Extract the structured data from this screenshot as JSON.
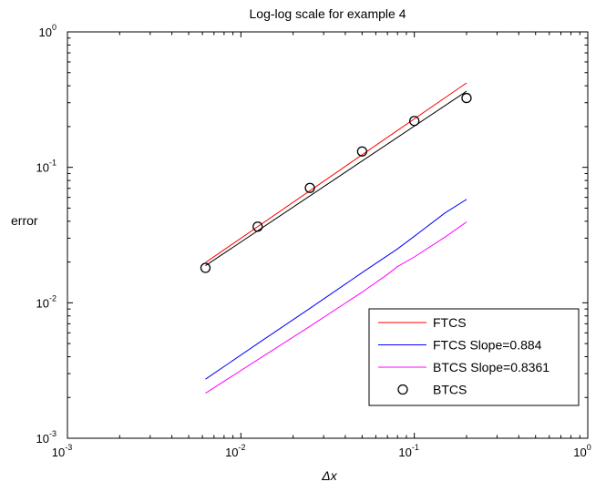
{
  "chart_data": {
    "type": "line",
    "title": "Log-log scale for example  4",
    "xlabel": "Δx",
    "ylabel": "error",
    "xscale": "log",
    "yscale": "log",
    "xlim": [
      0.001,
      1
    ],
    "ylim": [
      0.001,
      1
    ],
    "grid": false,
    "legend_position": "bottom-right",
    "x_ticks": [
      {
        "base": "10",
        "exp": "-3",
        "value": 0.001
      },
      {
        "base": "10",
        "exp": "-2",
        "value": 0.01
      },
      {
        "base": "10",
        "exp": "-1",
        "value": 0.1
      },
      {
        "base": "10",
        "exp": "0",
        "value": 1
      }
    ],
    "y_ticks": [
      {
        "base": "10",
        "exp": "-3",
        "value": 0.001
      },
      {
        "base": "10",
        "exp": "-2",
        "value": 0.01
      },
      {
        "base": "10",
        "exp": "-1",
        "value": 0.1
      },
      {
        "base": "10",
        "exp": "0",
        "value": 1
      }
    ],
    "series": [
      {
        "name": "FTCS",
        "style": "line",
        "color": "#ff0000",
        "x": [
          0.00625,
          0.2
        ],
        "y": [
          0.0198,
          0.42
        ]
      },
      {
        "name": "FTCS Slope=0.884",
        "style": "line",
        "color": "#0000ff",
        "x": [
          0.00625,
          0.0125,
          0.025,
          0.05,
          0.08,
          0.1,
          0.15,
          0.2
        ],
        "y": [
          0.00273,
          0.005,
          0.0091,
          0.0167,
          0.025,
          0.031,
          0.046,
          0.058
        ]
      },
      {
        "name": "BTCS Slope=0.8361",
        "style": "line",
        "color": "#ff00ff",
        "x": [
          0.00625,
          0.0125,
          0.025,
          0.05,
          0.07,
          0.08,
          0.1,
          0.15,
          0.2
        ],
        "y": [
          0.00215,
          0.0038,
          0.0067,
          0.012,
          0.0162,
          0.0185,
          0.0218,
          0.0305,
          0.0395
        ]
      },
      {
        "name": "BTCS",
        "style": "markers",
        "marker": "circle",
        "color": "#000000",
        "x": [
          0.00625,
          0.0125,
          0.025,
          0.05,
          0.1,
          0.2
        ],
        "y": [
          0.0181,
          0.0365,
          0.0705,
          0.131,
          0.22,
          0.325
        ]
      },
      {
        "style": "line",
        "color": "#000000",
        "x": [
          0.00625,
          0.2
        ],
        "y": [
          0.0188,
          0.365
        ]
      }
    ]
  }
}
